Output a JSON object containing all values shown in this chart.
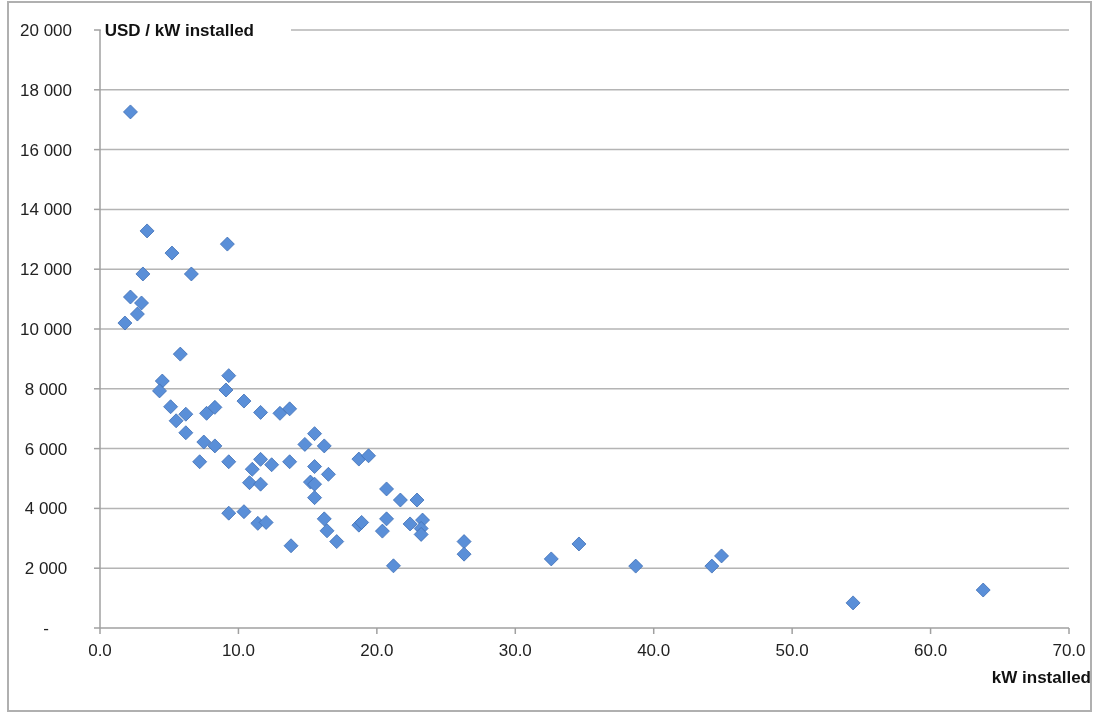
{
  "chart_data": {
    "type": "scatter",
    "xlabel": "kW installed",
    "ylabel": "USD / kW installed",
    "xlim": [
      0,
      70
    ],
    "ylim": [
      0,
      20000
    ],
    "xticks": [
      {
        "value": 0,
        "label": "0.0"
      },
      {
        "value": 10,
        "label": "10.0"
      },
      {
        "value": 20,
        "label": "20.0"
      },
      {
        "value": 30,
        "label": "30.0"
      },
      {
        "value": 40,
        "label": "40.0"
      },
      {
        "value": 50,
        "label": "50.0"
      },
      {
        "value": 60,
        "label": "60.0"
      },
      {
        "value": 70,
        "label": "70.0"
      }
    ],
    "yticks": [
      {
        "value": 0,
        "label": "-"
      },
      {
        "value": 2000,
        "label": "2 000"
      },
      {
        "value": 4000,
        "label": "4 000"
      },
      {
        "value": 6000,
        "label": "6 000"
      },
      {
        "value": 8000,
        "label": "8 000"
      },
      {
        "value": 10000,
        "label": "10 000"
      },
      {
        "value": 12000,
        "label": "12 000"
      },
      {
        "value": 14000,
        "label": "14 000"
      },
      {
        "value": 16000,
        "label": "16 000"
      },
      {
        "value": 18000,
        "label": "18 000"
      },
      {
        "value": 20000,
        "label": "20 000"
      }
    ],
    "grid": "y",
    "marker": "diamond",
    "series": [
      {
        "color": "#5a8fd8",
        "x": [
          2.2,
          3.4,
          5.2,
          9.2,
          3.1,
          6.6,
          2.2,
          3.0,
          2.7,
          1.8,
          5.8,
          4.5,
          4.3,
          9.3,
          9.1,
          5.1,
          5.5,
          6.2,
          6.2,
          7.7,
          8.3,
          10.4,
          11.6,
          13.0,
          13.7,
          7.5,
          8.3,
          7.2,
          9.3,
          11.6,
          11.0,
          12.4,
          13.7,
          10.8,
          11.6,
          15.5,
          14.8,
          16.2,
          15.5,
          16.5,
          15.2,
          15.5,
          15.5,
          9.3,
          10.4,
          11.4,
          12.0,
          13.8,
          16.2,
          16.4,
          17.1,
          18.7,
          19.4,
          20.7,
          21.7,
          22.9,
          18.7,
          18.9,
          20.7,
          20.4,
          22.4,
          23.3,
          23.2,
          23.2,
          21.2,
          26.3,
          26.3,
          32.6,
          34.6,
          38.7,
          44.2,
          44.9,
          54.4,
          63.8
        ],
        "values": [
          17260,
          13280,
          12540,
          12840,
          11840,
          11840,
          11070,
          10870,
          10500,
          10200,
          9160,
          8260,
          7930,
          8440,
          7960,
          7400,
          6930,
          7150,
          6530,
          7180,
          7380,
          7590,
          7210,
          7180,
          7330,
          6220,
          6090,
          5560,
          5560,
          5640,
          5310,
          5460,
          5560,
          4860,
          4810,
          6500,
          6140,
          6090,
          5400,
          5140,
          4880,
          4810,
          4360,
          3840,
          3890,
          3500,
          3530,
          2750,
          3650,
          3250,
          2890,
          5650,
          5760,
          4650,
          4280,
          4280,
          3440,
          3530,
          3650,
          3240,
          3480,
          3610,
          3330,
          3130,
          2080,
          2890,
          2470,
          2310,
          2810,
          2070,
          2070,
          2410,
          840,
          1270
        ]
      }
    ]
  }
}
